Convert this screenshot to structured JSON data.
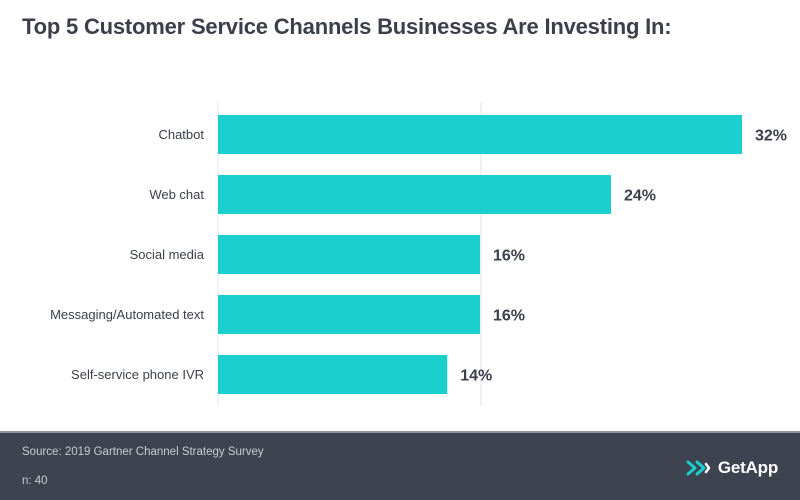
{
  "chart_data": {
    "type": "bar",
    "orientation": "horizontal",
    "title": "Top 5 Customer Service Channels Businesses Are Investing In:",
    "categories": [
      "Chatbot",
      "Web chat",
      "Social media",
      "Messaging/Automated text",
      "Self-service phone IVR"
    ],
    "values": [
      32,
      24,
      16,
      16,
      14
    ],
    "value_labels": [
      "32%",
      "24%",
      "16%",
      "16%",
      "14%"
    ],
    "xlim": [
      0,
      32
    ],
    "bar_color": "#1ccfcf",
    "gridlines": true
  },
  "footer": {
    "source": "Source: 2019 Gartner Channel Strategy Survey",
    "n": "n: 40",
    "brand": "GetApp"
  },
  "colors": {
    "footer_bg": "#3d4450",
    "brand_teal": "#1ccfcf"
  }
}
